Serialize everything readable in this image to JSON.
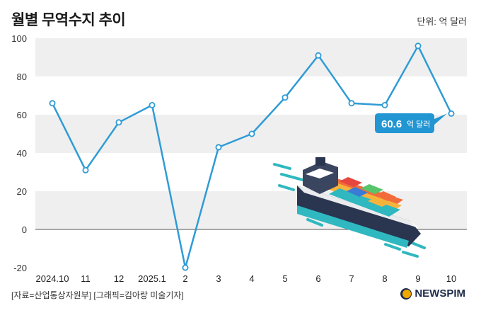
{
  "title": "월별 무역수지 추이",
  "unit_label": "단위: 억 달러",
  "source_text": "[자료=산업통상자원부] [그래픽=김아랑 미술기자]",
  "logo_text": "NEWSPIM",
  "colors": {
    "line": "#2f9bd6",
    "band": "#efefef",
    "callout": "#2196d3",
    "axis": "#555555"
  },
  "chart_data": {
    "type": "line",
    "title": "월별 무역수지 추이",
    "xlabel": "",
    "ylabel": "",
    "unit": "억 달러",
    "categories": [
      "2024.10",
      "11",
      "12",
      "2025.1",
      "2",
      "3",
      "4",
      "5",
      "6",
      "7",
      "8",
      "9",
      "10"
    ],
    "series": [
      {
        "values": [
          66,
          31,
          56,
          65,
          -20,
          43,
          50,
          69,
          91,
          66,
          65,
          96,
          60.6
        ]
      }
    ],
    "ylim": [
      -20,
      100
    ],
    "yticks": [
      -20,
      0,
      20,
      40,
      60,
      80,
      100
    ],
    "grid": "alternating horizontal bands",
    "annotation": {
      "index": 12,
      "value_text": "60.6",
      "unit_text": "억 달러"
    }
  }
}
